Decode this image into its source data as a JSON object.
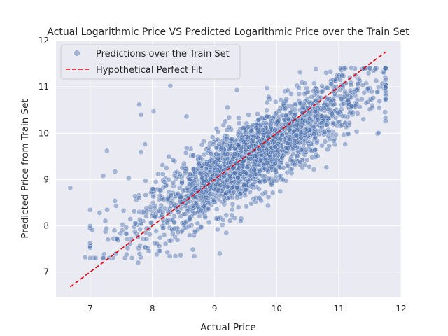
{
  "chart_data": {
    "type": "scatter",
    "title": "Actual Logarithmic Price VS Predicted Logarithmic Price over the Train Set",
    "xlabel": "Actual Price",
    "ylabel": "Predicted Price from Train Set",
    "xlim": [
      6.45,
      12.0
    ],
    "ylim": [
      6.45,
      12.0
    ],
    "xticks": [
      7,
      8,
      9,
      10,
      11,
      12
    ],
    "yticks": [
      7,
      8,
      9,
      10,
      11,
      12
    ],
    "grid": true,
    "legend_position": "upper-left",
    "series": [
      {
        "name": "Predictions over the Train Set",
        "kind": "scatter",
        "color": "#4c72b0",
        "alpha": 0.45,
        "generated": {
          "description": "dense cloud around the diagonal",
          "n": 2200,
          "x_center": 9.6,
          "x_spread": 0.9,
          "slope": 0.78,
          "intercept": 2.0,
          "noise": 0.42
        },
        "points": [
          {
            "x": 6.68,
            "y": 8.82
          },
          {
            "x": 6.92,
            "y": 7.32
          },
          {
            "x": 7.77,
            "y": 7.2
          },
          {
            "x": 7.79,
            "y": 10.62
          },
          {
            "x": 8.29,
            "y": 11.02
          },
          {
            "x": 8.28,
            "y": 7.34
          },
          {
            "x": 8.11,
            "y": 7.56
          },
          {
            "x": 7.27,
            "y": 9.62
          },
          {
            "x": 7.21,
            "y": 9.08
          },
          {
            "x": 7.15,
            "y": 8.28
          },
          {
            "x": 7.26,
            "y": 7.94
          },
          {
            "x": 7.43,
            "y": 7.72
          },
          {
            "x": 7.82,
            "y": 10.4
          },
          {
            "x": 8.02,
            "y": 10.47
          },
          {
            "x": 8.55,
            "y": 10.36
          },
          {
            "x": 9.36,
            "y": 10.93
          },
          {
            "x": 9.84,
            "y": 10.97
          },
          {
            "x": 9.86,
            "y": 8.44
          },
          {
            "x": 11.05,
            "y": 11.24
          },
          {
            "x": 11.2,
            "y": 11.41
          },
          {
            "x": 11.65,
            "y": 10.55
          },
          {
            "x": 11.7,
            "y": 11.07
          },
          {
            "x": 11.05,
            "y": 10.18
          },
          {
            "x": 10.8,
            "y": 9.26
          },
          {
            "x": 10.45,
            "y": 9.32
          },
          {
            "x": 10.0,
            "y": 8.98
          },
          {
            "x": 7.62,
            "y": 9.03
          },
          {
            "x": 7.4,
            "y": 9.17
          },
          {
            "x": 7.88,
            "y": 9.76
          },
          {
            "x": 8.48,
            "y": 7.89
          }
        ]
      },
      {
        "name": "Hypothetical Perfect Fit",
        "kind": "line",
        "color": "#e8000b",
        "dashed": true,
        "x": [
          6.68,
          11.76
        ],
        "y": [
          6.68,
          11.76
        ]
      }
    ]
  }
}
